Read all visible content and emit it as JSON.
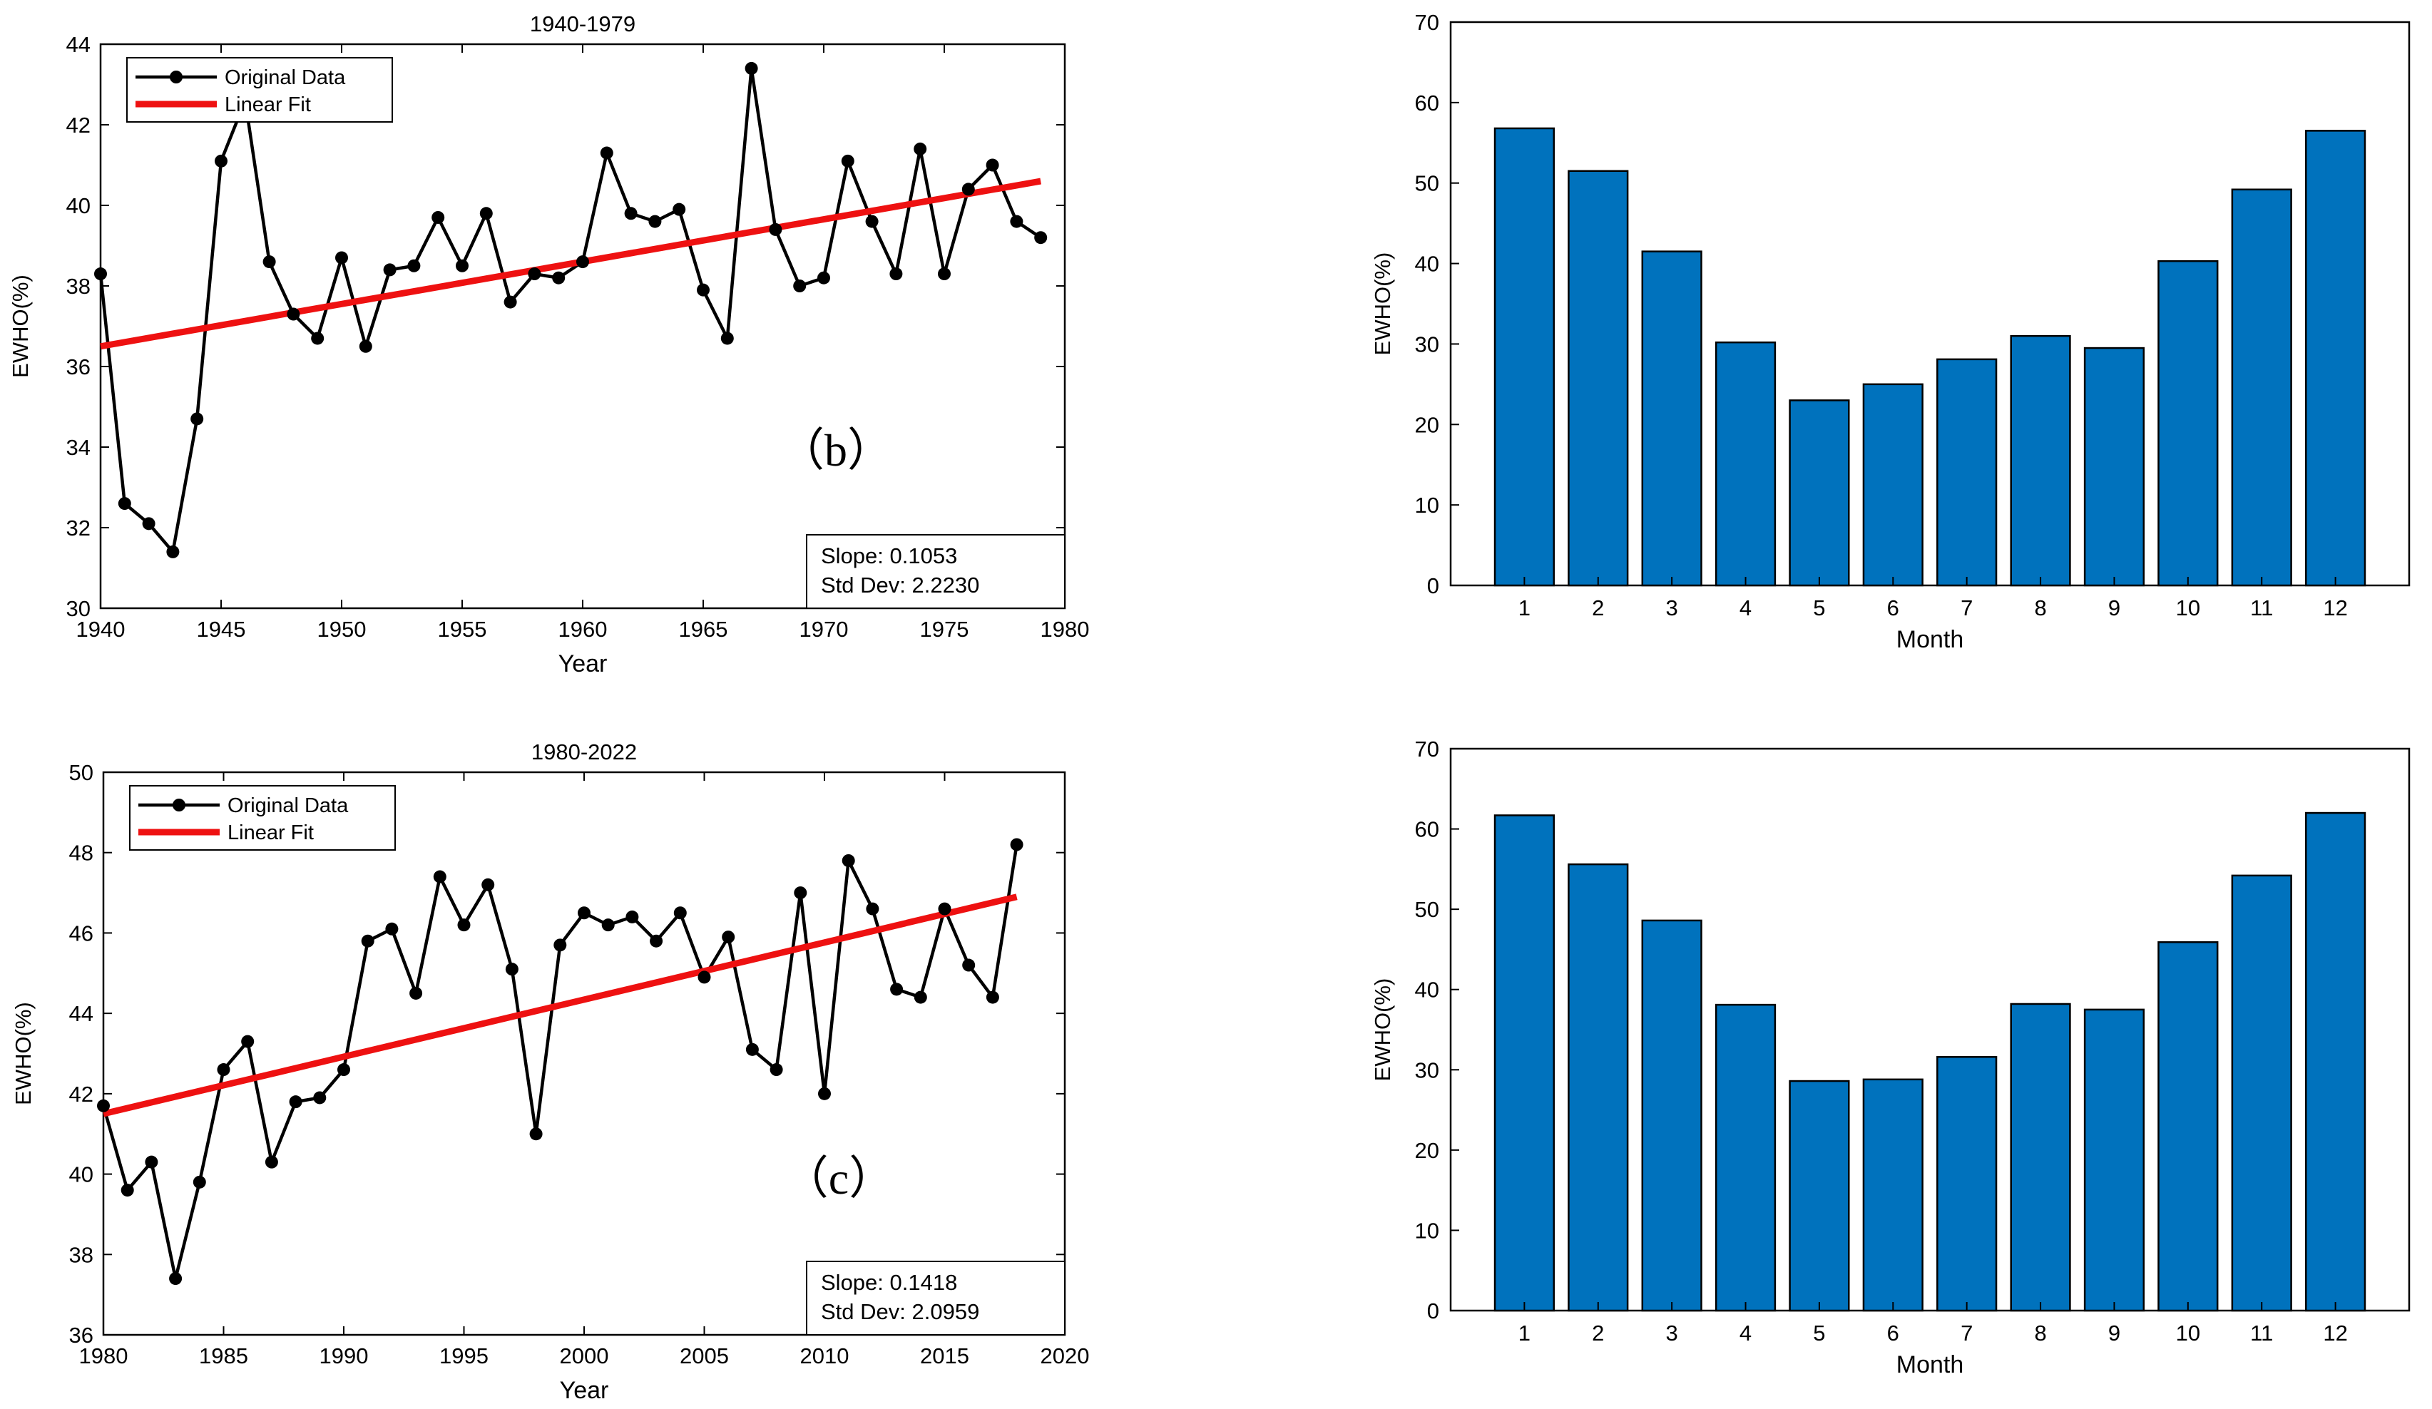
{
  "chart_data": [
    {
      "id": "line1",
      "type": "line",
      "title": "1940-1979",
      "xlabel": "Year",
      "ylabel": "EWHO(%)",
      "xlim": [
        1940,
        1980
      ],
      "ylim": [
        30,
        44
      ],
      "xticks": [
        1940,
        1945,
        1950,
        1955,
        1960,
        1965,
        1970,
        1975,
        1980
      ],
      "yticks": [
        30,
        32,
        34,
        36,
        38,
        40,
        42,
        44
      ],
      "legend": [
        "Original Data",
        "Linear Fit"
      ],
      "legend_position": "top-left",
      "panel_label": "（b）",
      "stats": [
        "Slope: 0.1053",
        "Std Dev: 2.2230"
      ],
      "series": [
        {
          "name": "Original Data",
          "x": [
            1940,
            1941,
            1942,
            1943,
            1944,
            1945,
            1946,
            1947,
            1948,
            1949,
            1950,
            1951,
            1952,
            1953,
            1954,
            1955,
            1956,
            1957,
            1958,
            1959,
            1960,
            1961,
            1962,
            1963,
            1964,
            1965,
            1966,
            1967,
            1968,
            1969,
            1970,
            1971,
            1972,
            1973,
            1974,
            1975,
            1976,
            1977,
            1978,
            1979
          ],
          "y": [
            38.3,
            32.6,
            32.1,
            31.4,
            34.7,
            41.1,
            42.6,
            38.6,
            37.3,
            36.7,
            38.7,
            36.5,
            38.4,
            38.5,
            39.7,
            38.5,
            39.8,
            37.6,
            38.3,
            38.2,
            38.6,
            41.3,
            39.8,
            39.6,
            39.9,
            37.9,
            36.7,
            43.4,
            39.4,
            38.0,
            38.2,
            41.1,
            39.6,
            38.3,
            41.4,
            38.3,
            40.4,
            41.0,
            39.6,
            39.2
          ]
        },
        {
          "name": "Linear Fit",
          "x": [
            1940,
            1979
          ],
          "y": [
            36.5,
            40.6
          ]
        }
      ]
    },
    {
      "id": "bar1",
      "type": "bar",
      "title": "",
      "xlabel": "Month",
      "ylabel": "EWHO(%)",
      "ylim": [
        0,
        70
      ],
      "yticks": [
        0,
        10,
        20,
        30,
        40,
        50,
        60,
        70
      ],
      "categories": [
        "1",
        "2",
        "3",
        "4",
        "5",
        "6",
        "7",
        "8",
        "9",
        "10",
        "11",
        "12"
      ],
      "values": [
        56.8,
        51.5,
        41.5,
        30.2,
        23.0,
        25.0,
        28.1,
        31.0,
        29.5,
        40.3,
        49.2,
        56.5
      ],
      "bar_color": "#0072BD"
    },
    {
      "id": "line2",
      "type": "line",
      "title": "1980-2022",
      "xlabel": "Year",
      "ylabel": "EWHO(%)",
      "xlim": [
        1980,
        2020
      ],
      "ylim": [
        36,
        50
      ],
      "xticks": [
        1980,
        1985,
        1990,
        1995,
        2000,
        2005,
        2010,
        2015,
        2020
      ],
      "yticks": [
        36,
        38,
        40,
        42,
        44,
        46,
        48,
        50
      ],
      "legend": [
        "Original Data",
        "Linear Fit"
      ],
      "legend_position": "top-left",
      "panel_label": "（c）",
      "stats": [
        "Slope: 0.1418",
        "Std Dev: 2.0959"
      ],
      "series": [
        {
          "name": "Original Data",
          "x": [
            1980,
            1981,
            1982,
            1983,
            1984,
            1985,
            1986,
            1987,
            1988,
            1989,
            1990,
            1991,
            1992,
            1993,
            1994,
            1995,
            1996,
            1997,
            1998,
            1999,
            2000,
            2001,
            2002,
            2003,
            2004,
            2005,
            2006,
            2007,
            2008,
            2009,
            2010,
            2011,
            2012,
            2013,
            2014,
            2015,
            2016,
            2017,
            2018
          ],
          "y": [
            41.7,
            39.6,
            40.3,
            37.4,
            39.8,
            42.6,
            43.3,
            40.3,
            41.8,
            41.9,
            42.6,
            45.8,
            46.1,
            44.5,
            47.4,
            46.2,
            47.2,
            45.1,
            41.0,
            45.7,
            46.5,
            46.2,
            46.4,
            45.8,
            46.5,
            44.9,
            45.9,
            43.1,
            42.6,
            47.0,
            42.0,
            47.8,
            46.6,
            44.6,
            44.4,
            46.6,
            45.2,
            44.4,
            48.2
          ]
        },
        {
          "name": "Linear Fit",
          "x": [
            1980,
            2018
          ],
          "y": [
            41.5,
            46.9
          ]
        }
      ]
    },
    {
      "id": "bar2",
      "type": "bar",
      "title": "",
      "xlabel": "Month",
      "ylabel": "EWHO(%)",
      "ylim": [
        0,
        70
      ],
      "yticks": [
        0,
        10,
        20,
        30,
        40,
        50,
        60,
        70
      ],
      "categories": [
        "1",
        "2",
        "3",
        "4",
        "5",
        "6",
        "7",
        "8",
        "9",
        "10",
        "11",
        "12"
      ],
      "values": [
        61.7,
        55.6,
        48.6,
        38.1,
        28.6,
        28.8,
        31.6,
        38.2,
        37.5,
        45.9,
        54.2,
        62.0
      ],
      "bar_color": "#0072BD"
    }
  ],
  "colors": {
    "data_line": "#000000",
    "fit_line": "#EE1111",
    "bar": "#0072BD",
    "axis": "#000000"
  }
}
